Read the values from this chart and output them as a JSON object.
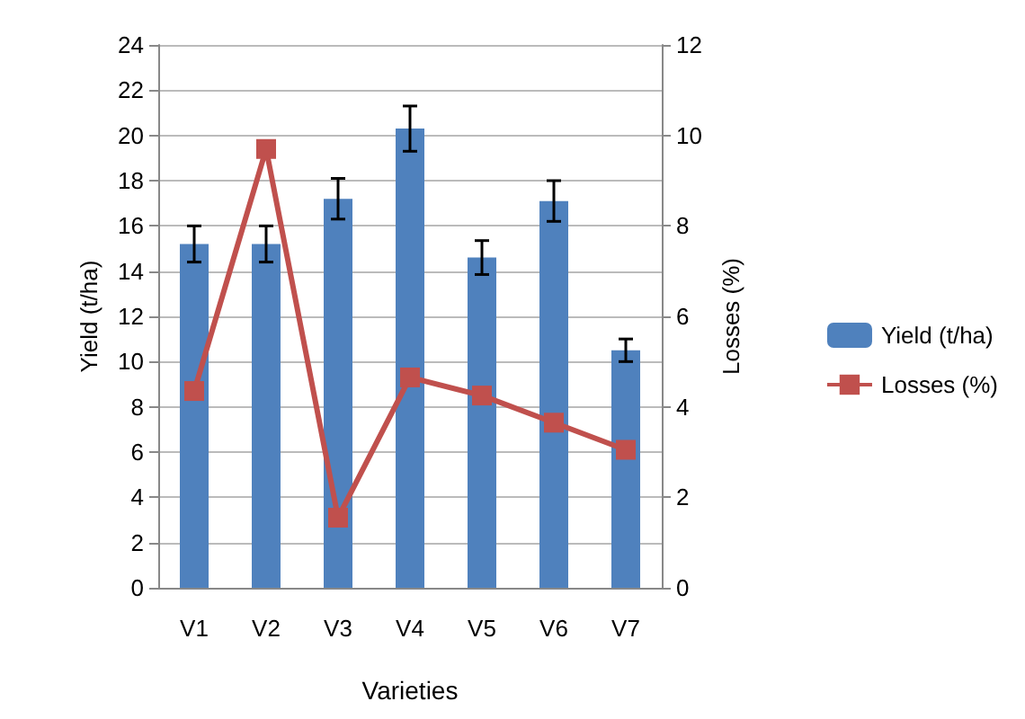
{
  "chart_data": {
    "type": "bar",
    "xlabel": "Varieties",
    "ylabel": "Yield (t/ha)",
    "y2label": "Losses (%)",
    "categories": [
      "V1",
      "V2",
      "V3",
      "V4",
      "V5",
      "V6",
      "V7"
    ],
    "series": [
      {
        "name": "Yield (t/ha)",
        "color": "#4f81bd",
        "values": [
          15.2,
          15.2,
          17.2,
          20.3,
          14.6,
          17.1,
          10.5
        ],
        "errors": [
          0.8,
          0.8,
          0.9,
          1.0,
          0.75,
          0.9,
          0.5
        ]
      },
      {
        "name": "Losses (%)",
        "type": "line",
        "axis": "y2",
        "color": "#c0504d",
        "marker": "square",
        "values": [
          4.35,
          9.7,
          1.55,
          4.65,
          4.25,
          3.65,
          3.05
        ]
      }
    ],
    "ylim": [
      0,
      24
    ],
    "yticks": [
      0,
      2,
      4,
      6,
      8,
      10,
      12,
      14,
      16,
      18,
      20,
      22,
      24
    ],
    "y2lim": [
      0,
      12
    ],
    "y2ticks": [
      0,
      2,
      4,
      6,
      8,
      10,
      12
    ],
    "grid": "y",
    "legend": "right"
  }
}
